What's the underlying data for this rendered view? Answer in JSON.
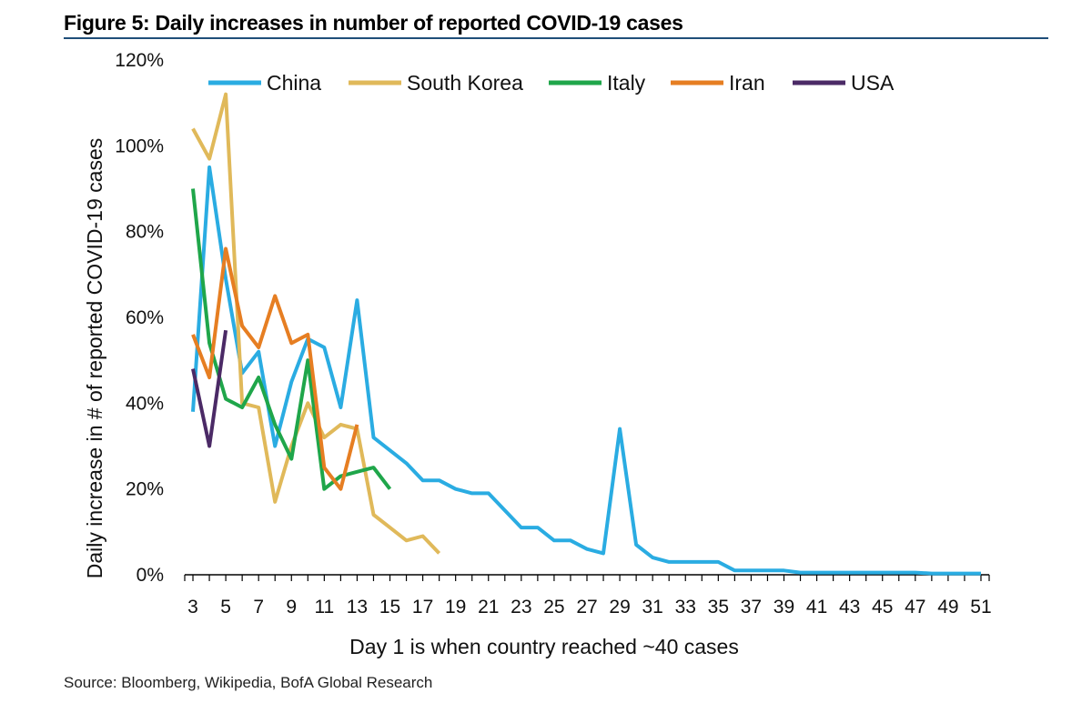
{
  "figure": {
    "title": "Figure 5: Daily increases in number of reported COVID-19 cases",
    "source": "Source: Bloomberg, Wikipedia, BofA Global Research"
  },
  "chart_data": {
    "type": "line",
    "title": "Figure 5: Daily increases in number of reported COVID-19 cases",
    "xlabel": "Day 1 is when country reached ~40 cases",
    "ylabel": "Daily increase in # of reported COVID-19 cases",
    "xlim": [
      2.5,
      51.5
    ],
    "ylim": [
      0,
      1.2
    ],
    "x_ticks": [
      3,
      5,
      7,
      9,
      11,
      13,
      15,
      17,
      19,
      21,
      23,
      25,
      27,
      29,
      31,
      33,
      35,
      37,
      39,
      41,
      43,
      45,
      47,
      49,
      51
    ],
    "x_tick_labels": [
      "3",
      "5",
      "7",
      "9",
      "11",
      "13",
      "15",
      "17",
      "19",
      "21",
      "23",
      "25",
      "27",
      "29",
      "31",
      "33",
      "35",
      "37",
      "39",
      "41",
      "43",
      "45",
      "47",
      "49",
      "51"
    ],
    "y_ticks": [
      0,
      0.2,
      0.4,
      0.6,
      0.8,
      1.0,
      1.2
    ],
    "y_tick_labels": [
      "0%",
      "20%",
      "40%",
      "60%",
      "80%",
      "100%",
      "120%"
    ],
    "grid": false,
    "legend_position": "top",
    "series": [
      {
        "name": "China",
        "color": "#2aace2",
        "x": [
          3,
          4,
          5,
          6,
          7,
          8,
          9,
          10,
          11,
          12,
          13,
          14,
          15,
          16,
          17,
          18,
          19,
          20,
          21,
          22,
          23,
          24,
          25,
          26,
          27,
          28,
          29,
          30,
          31,
          32,
          33,
          34,
          35,
          36,
          37,
          38,
          39,
          40,
          41,
          42,
          43,
          44,
          45,
          46,
          47,
          48,
          49,
          50,
          51
        ],
        "values": [
          0.38,
          0.95,
          0.69,
          0.47,
          0.52,
          0.3,
          0.45,
          0.55,
          0.53,
          0.39,
          0.64,
          0.32,
          0.29,
          0.26,
          0.22,
          0.22,
          0.2,
          0.19,
          0.19,
          0.15,
          0.11,
          0.11,
          0.08,
          0.08,
          0.06,
          0.05,
          0.34,
          0.07,
          0.04,
          0.03,
          0.03,
          0.03,
          0.03,
          0.01,
          0.01,
          0.01,
          0.01,
          0.005,
          0.005,
          0.005,
          0.005,
          0.005,
          0.005,
          0.005,
          0.005,
          0.003,
          0.003,
          0.003,
          0.003
        ]
      },
      {
        "name": "South Korea",
        "color": "#e0b95a",
        "x": [
          3,
          4,
          5,
          6,
          7,
          8,
          9,
          10,
          11,
          12,
          13,
          14,
          15,
          16,
          17,
          18
        ],
        "values": [
          1.04,
          0.97,
          1.12,
          0.4,
          0.39,
          0.17,
          0.3,
          0.4,
          0.32,
          0.35,
          0.34,
          0.14,
          0.11,
          0.08,
          0.09,
          0.05
        ]
      },
      {
        "name": "Italy",
        "color": "#1fa64a",
        "x": [
          3,
          4,
          5,
          6,
          7,
          8,
          9,
          10,
          11,
          12,
          13,
          14,
          15
        ],
        "values": [
          0.9,
          0.54,
          0.41,
          0.39,
          0.46,
          0.35,
          0.27,
          0.5,
          0.2,
          0.23,
          0.24,
          0.25,
          0.2
        ]
      },
      {
        "name": "Iran",
        "color": "#e67e22",
        "x": [
          3,
          4,
          5,
          6,
          7,
          8,
          9,
          10,
          11,
          12,
          13
        ],
        "values": [
          0.56,
          0.46,
          0.76,
          0.58,
          0.53,
          0.65,
          0.54,
          0.56,
          0.25,
          0.2,
          0.35
        ]
      },
      {
        "name": "USA",
        "color": "#4b2a66",
        "x": [
          3,
          4,
          5
        ],
        "values": [
          0.48,
          0.3,
          0.57
        ]
      }
    ]
  }
}
